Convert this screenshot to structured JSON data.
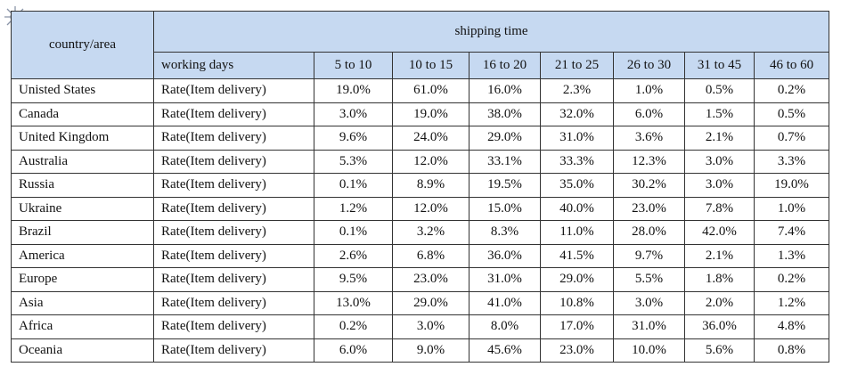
{
  "header": {
    "country_area": "country/area",
    "shipping_time": "shipping time",
    "working_days": "working days",
    "ranges": [
      "5 to 10",
      "10 to 15",
      "16 to 20",
      "21 to 25",
      "26 to 30",
      "31 to 45",
      "46 to 60"
    ]
  },
  "rows": [
    {
      "country": "Unisted States",
      "label": "Rate(Item delivery)",
      "values": [
        "19.0%",
        "61.0%",
        "16.0%",
        "2.3%",
        "1.0%",
        "0.5%",
        "0.2%"
      ]
    },
    {
      "country": "Canada",
      "label": "Rate(Item delivery)",
      "values": [
        "3.0%",
        "19.0%",
        "38.0%",
        "32.0%",
        "6.0%",
        "1.5%",
        "0.5%"
      ]
    },
    {
      "country": "United Kingdom",
      "label": "Rate(Item delivery)",
      "values": [
        "9.6%",
        "24.0%",
        "29.0%",
        "31.0%",
        "3.6%",
        "2.1%",
        "0.7%"
      ]
    },
    {
      "country": "Australia",
      "label": "Rate(Item delivery)",
      "values": [
        "5.3%",
        "12.0%",
        "33.1%",
        "33.3%",
        "12.3%",
        "3.0%",
        "3.3%"
      ]
    },
    {
      "country": "Russia",
      "label": "Rate(Item delivery)",
      "values": [
        "0.1%",
        "8.9%",
        "19.5%",
        "35.0%",
        "30.2%",
        "3.0%",
        "19.0%"
      ]
    },
    {
      "country": "Ukraine",
      "label": "Rate(Item delivery)",
      "values": [
        "1.2%",
        "12.0%",
        "15.0%",
        "40.0%",
        "23.0%",
        "7.8%",
        "1.0%"
      ]
    },
    {
      "country": "Brazil",
      "label": "Rate(Item delivery)",
      "values": [
        "0.1%",
        "3.2%",
        "8.3%",
        "11.0%",
        "28.0%",
        "42.0%",
        "7.4%"
      ]
    },
    {
      "country": "America",
      "label": "Rate(Item delivery)",
      "values": [
        "2.6%",
        "6.8%",
        "36.0%",
        "41.5%",
        "9.7%",
        "2.1%",
        "1.3%"
      ]
    },
    {
      "country": "Europe",
      "label": "Rate(Item delivery)",
      "values": [
        "9.5%",
        "23.0%",
        "31.0%",
        "29.0%",
        "5.5%",
        "1.8%",
        "0.2%"
      ]
    },
    {
      "country": "Asia",
      "label": "Rate(Item delivery)",
      "values": [
        "13.0%",
        "29.0%",
        "41.0%",
        "10.8%",
        "3.0%",
        "2.0%",
        "1.2%"
      ]
    },
    {
      "country": "Africa",
      "label": "Rate(Item delivery)",
      "values": [
        "0.2%",
        "3.0%",
        "8.0%",
        "17.0%",
        "31.0%",
        "36.0%",
        "4.8%"
      ]
    },
    {
      "country": "Oceania",
      "label": "Rate(Item delivery)",
      "values": [
        "6.0%",
        "9.0%",
        "45.6%",
        "23.0%",
        "10.0%",
        "5.6%",
        "0.8%"
      ]
    }
  ]
}
